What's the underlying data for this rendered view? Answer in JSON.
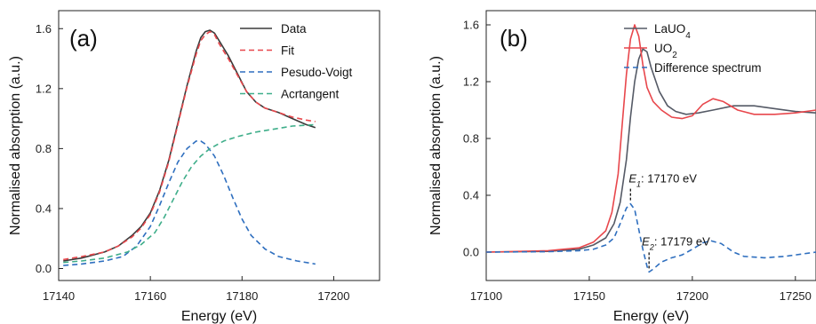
{
  "chart_data": [
    {
      "type": "line",
      "panel_label": "(a)",
      "xlabel": "Energy (eV)",
      "ylabel": "Normalised absorption (a.u.)",
      "xlim": [
        17140,
        17210
      ],
      "ylim": [
        -0.08,
        1.72
      ],
      "xticks": [
        17140,
        17160,
        17180,
        17200
      ],
      "xtick_labels": [
        "17140",
        "17160",
        "17180",
        "17200"
      ],
      "yticks": [
        0,
        0.4,
        0.8,
        1.2,
        1.6
      ],
      "ytick_labels": [
        "0.0",
        "0.4",
        "0.8",
        "1.2",
        "1.6"
      ],
      "grid": false,
      "legend_position": "top-right",
      "series": [
        {
          "name": "Data",
          "color": "#3a3a3a",
          "style": "solid",
          "points": [
            [
              17141,
              0.05
            ],
            [
              17145,
              0.07
            ],
            [
              17150,
              0.11
            ],
            [
              17153,
              0.15
            ],
            [
              17156,
              0.22
            ],
            [
              17158,
              0.28
            ],
            [
              17160,
              0.37
            ],
            [
              17162,
              0.52
            ],
            [
              17164,
              0.72
            ],
            [
              17166,
              0.97
            ],
            [
              17168,
              1.22
            ],
            [
              17170,
              1.45
            ],
            [
              17171,
              1.54
            ],
            [
              17172,
              1.58
            ],
            [
              17173,
              1.59
            ],
            [
              17174,
              1.57
            ],
            [
              17175,
              1.52
            ],
            [
              17177,
              1.42
            ],
            [
              17179,
              1.3
            ],
            [
              17181,
              1.18
            ],
            [
              17183,
              1.11
            ],
            [
              17185,
              1.07
            ],
            [
              17188,
              1.04
            ],
            [
              17191,
              1.0
            ],
            [
              17194,
              0.96
            ],
            [
              17196,
              0.94
            ]
          ]
        },
        {
          "name": "Fit",
          "color": "#e8474c",
          "style": "dashed",
          "points": [
            [
              17141,
              0.06
            ],
            [
              17145,
              0.08
            ],
            [
              17150,
              0.11
            ],
            [
              17153,
              0.15
            ],
            [
              17156,
              0.21
            ],
            [
              17158,
              0.27
            ],
            [
              17160,
              0.36
            ],
            [
              17162,
              0.51
            ],
            [
              17164,
              0.71
            ],
            [
              17166,
              0.96
            ],
            [
              17168,
              1.21
            ],
            [
              17170,
              1.43
            ],
            [
              17171,
              1.52
            ],
            [
              17172,
              1.56
            ],
            [
              17173,
              1.58
            ],
            [
              17174,
              1.56
            ],
            [
              17175,
              1.5
            ],
            [
              17177,
              1.4
            ],
            [
              17179,
              1.29
            ],
            [
              17181,
              1.18
            ],
            [
              17183,
              1.11
            ],
            [
              17185,
              1.07
            ],
            [
              17188,
              1.04
            ],
            [
              17191,
              1.01
            ],
            [
              17194,
              0.99
            ],
            [
              17196,
              0.98
            ]
          ]
        },
        {
          "name": "Pesudo-Voigt",
          "color": "#2f6fbf",
          "style": "dashed",
          "points": [
            [
              17141,
              0.02
            ],
            [
              17145,
              0.03
            ],
            [
              17150,
              0.05
            ],
            [
              17154,
              0.08
            ],
            [
              17157,
              0.15
            ],
            [
              17160,
              0.28
            ],
            [
              17162,
              0.42
            ],
            [
              17164,
              0.57
            ],
            [
              17166,
              0.71
            ],
            [
              17168,
              0.8
            ],
            [
              17170,
              0.85
            ],
            [
              17171,
              0.85
            ],
            [
              17172,
              0.83
            ],
            [
              17174,
              0.75
            ],
            [
              17176,
              0.62
            ],
            [
              17178,
              0.47
            ],
            [
              17180,
              0.33
            ],
            [
              17182,
              0.22
            ],
            [
              17185,
              0.13
            ],
            [
              17188,
              0.08
            ],
            [
              17192,
              0.05
            ],
            [
              17196,
              0.03
            ]
          ]
        },
        {
          "name": "Acrtangent",
          "color": "#3fae8a",
          "style": "dashed",
          "points": [
            [
              17141,
              0.04
            ],
            [
              17145,
              0.05
            ],
            [
              17150,
              0.07
            ],
            [
              17155,
              0.11
            ],
            [
              17158,
              0.16
            ],
            [
              17161,
              0.24
            ],
            [
              17163,
              0.34
            ],
            [
              17165,
              0.46
            ],
            [
              17167,
              0.58
            ],
            [
              17169,
              0.68
            ],
            [
              17171,
              0.75
            ],
            [
              17173,
              0.8
            ],
            [
              17176,
              0.85
            ],
            [
              17179,
              0.88
            ],
            [
              17183,
              0.91
            ],
            [
              17187,
              0.93
            ],
            [
              17191,
              0.95
            ],
            [
              17196,
              0.96
            ]
          ]
        }
      ]
    },
    {
      "type": "line",
      "panel_label": "(b)",
      "xlabel": "Energy (eV)",
      "ylabel": "Normalised absorption (a.u.)",
      "xlim": [
        17100,
        17260
      ],
      "ylim": [
        -0.2,
        1.7
      ],
      "xticks": [
        17100,
        17150,
        17200,
        17250
      ],
      "xtick_labels": [
        "17100",
        "17150",
        "17200",
        "17250"
      ],
      "yticks": [
        0,
        0.4,
        0.8,
        1.2,
        1.6
      ],
      "ytick_labels": [
        "0.0",
        "0.4",
        "0.8",
        "1.2",
        "1.6"
      ],
      "grid": false,
      "legend_position": "top-right",
      "series": [
        {
          "name": "LaUO4",
          "color": "#555a66",
          "style": "solid",
          "points": [
            [
              17100,
              0.0
            ],
            [
              17130,
              0.005
            ],
            [
              17145,
              0.02
            ],
            [
              17152,
              0.05
            ],
            [
              17158,
              0.1
            ],
            [
              17162,
              0.2
            ],
            [
              17165,
              0.35
            ],
            [
              17168,
              0.65
            ],
            [
              17170,
              0.95
            ],
            [
              17172,
              1.2
            ],
            [
              17174,
              1.36
            ],
            [
              17176,
              1.43
            ],
            [
              17178,
              1.41
            ],
            [
              17180,
              1.3
            ],
            [
              17184,
              1.13
            ],
            [
              17188,
              1.03
            ],
            [
              17192,
              0.99
            ],
            [
              17197,
              0.97
            ],
            [
              17203,
              0.98
            ],
            [
              17210,
              1.0
            ],
            [
              17220,
              1.03
            ],
            [
              17230,
              1.03
            ],
            [
              17240,
              1.01
            ],
            [
              17250,
              0.99
            ],
            [
              17260,
              0.98
            ]
          ]
        },
        {
          "name": "UO2",
          "color": "#e8474c",
          "style": "solid",
          "points": [
            [
              17100,
              0.0
            ],
            [
              17130,
              0.01
            ],
            [
              17145,
              0.03
            ],
            [
              17152,
              0.07
            ],
            [
              17158,
              0.15
            ],
            [
              17161,
              0.28
            ],
            [
              17164,
              0.55
            ],
            [
              17166,
              0.9
            ],
            [
              17168,
              1.25
            ],
            [
              17170,
              1.5
            ],
            [
              17172,
              1.6
            ],
            [
              17174,
              1.52
            ],
            [
              17176,
              1.32
            ],
            [
              17178,
              1.16
            ],
            [
              17181,
              1.06
            ],
            [
              17185,
              1.0
            ],
            [
              17190,
              0.95
            ],
            [
              17195,
              0.94
            ],
            [
              17200,
              0.96
            ],
            [
              17205,
              1.04
            ],
            [
              17210,
              1.08
            ],
            [
              17215,
              1.06
            ],
            [
              17222,
              1.0
            ],
            [
              17230,
              0.97
            ],
            [
              17240,
              0.97
            ],
            [
              17250,
              0.98
            ],
            [
              17260,
              1.0
            ]
          ]
        },
        {
          "name": "Difference spectrum",
          "color": "#2f6fbf",
          "style": "dashed",
          "points": [
            [
              17100,
              0.0
            ],
            [
              17130,
              0.003
            ],
            [
              17145,
              0.01
            ],
            [
              17152,
              0.02
            ],
            [
              17158,
              0.05
            ],
            [
              17162,
              0.1
            ],
            [
              17165,
              0.2
            ],
            [
              17168,
              0.31
            ],
            [
              17170,
              0.34
            ],
            [
              17172,
              0.3
            ],
            [
              17174,
              0.16
            ],
            [
              17176,
              0.02
            ],
            [
              17178,
              -0.1
            ],
            [
              17179,
              -0.14
            ],
            [
              17181,
              -0.12
            ],
            [
              17185,
              -0.07
            ],
            [
              17190,
              -0.04
            ],
            [
              17195,
              -0.02
            ],
            [
              17200,
              0.02
            ],
            [
              17205,
              0.065
            ],
            [
              17209,
              0.08
            ],
            [
              17214,
              0.06
            ],
            [
              17220,
              0.0
            ],
            [
              17225,
              -0.03
            ],
            [
              17235,
              -0.04
            ],
            [
              17245,
              -0.03
            ],
            [
              17260,
              0.0
            ]
          ]
        }
      ],
      "annotations": [
        {
          "symbol": "E",
          "subscript": "1",
          "text": ": 17170 eV",
          "x": 17170,
          "y": 0.34
        },
        {
          "symbol": "E",
          "subscript": "2",
          "text": ": 17179 eV",
          "x": 17179,
          "y": -0.14
        }
      ]
    }
  ]
}
